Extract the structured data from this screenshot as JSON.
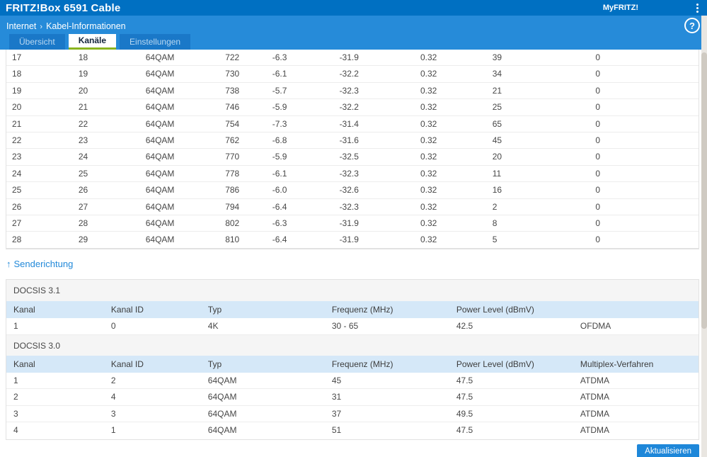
{
  "header": {
    "title": "FRITZ!Box 6591 Cable",
    "myfritz": "MyFRITZ!"
  },
  "breadcrumb": {
    "section": "Internet",
    "separator": "›",
    "page": "Kabel-Informationen",
    "help_glyph": "?"
  },
  "tabs": [
    {
      "label": "Übersicht",
      "active": false
    },
    {
      "label": "Kanäle",
      "active": true
    },
    {
      "label": "Einstellungen",
      "active": false
    }
  ],
  "receive_table": {
    "rows": [
      [
        "17",
        "18",
        "64QAM",
        "722",
        "-6.3",
        "-31.9",
        "0.32",
        "39",
        "0"
      ],
      [
        "18",
        "19",
        "64QAM",
        "730",
        "-6.1",
        "-32.2",
        "0.32",
        "34",
        "0"
      ],
      [
        "19",
        "20",
        "64QAM",
        "738",
        "-5.7",
        "-32.3",
        "0.32",
        "21",
        "0"
      ],
      [
        "20",
        "21",
        "64QAM",
        "746",
        "-5.9",
        "-32.2",
        "0.32",
        "25",
        "0"
      ],
      [
        "21",
        "22",
        "64QAM",
        "754",
        "-7.3",
        "-31.4",
        "0.32",
        "65",
        "0"
      ],
      [
        "22",
        "23",
        "64QAM",
        "762",
        "-6.8",
        "-31.6",
        "0.32",
        "45",
        "0"
      ],
      [
        "23",
        "24",
        "64QAM",
        "770",
        "-5.9",
        "-32.5",
        "0.32",
        "20",
        "0"
      ],
      [
        "24",
        "25",
        "64QAM",
        "778",
        "-6.1",
        "-32.3",
        "0.32",
        "11",
        "0"
      ],
      [
        "25",
        "26",
        "64QAM",
        "786",
        "-6.0",
        "-32.6",
        "0.32",
        "16",
        "0"
      ],
      [
        "26",
        "27",
        "64QAM",
        "794",
        "-6.4",
        "-32.3",
        "0.32",
        "2",
        "0"
      ],
      [
        "27",
        "28",
        "64QAM",
        "802",
        "-6.3",
        "-31.9",
        "0.32",
        "8",
        "0"
      ],
      [
        "28",
        "29",
        "64QAM",
        "810",
        "-6.4",
        "-31.9",
        "0.32",
        "5",
        "0"
      ]
    ]
  },
  "send_section": {
    "arrow": "↑",
    "title": "Senderichtung"
  },
  "docsis31": {
    "label": "DOCSIS 3.1",
    "headers": [
      "Kanal",
      "Kanal ID",
      "Typ",
      "Frequenz (MHz)",
      "Power Level (dBmV)",
      ""
    ],
    "rows": [
      [
        "1",
        "0",
        "4K",
        "30 - 65",
        "42.5",
        "OFDMA"
      ]
    ]
  },
  "docsis30": {
    "label": "DOCSIS 3.0",
    "headers": [
      "Kanal",
      "Kanal ID",
      "Typ",
      "Frequenz (MHz)",
      "Power Level (dBmV)",
      "Multiplex-Verfahren"
    ],
    "rows": [
      [
        "1",
        "2",
        "64QAM",
        "45",
        "47.5",
        "ATDMA"
      ],
      [
        "2",
        "4",
        "64QAM",
        "31",
        "47.5",
        "ATDMA"
      ],
      [
        "3",
        "3",
        "64QAM",
        "37",
        "49.5",
        "ATDMA"
      ],
      [
        "4",
        "1",
        "64QAM",
        "51",
        "47.5",
        "ATDMA"
      ]
    ]
  },
  "footer": {
    "refresh_label": "Aktualisieren"
  },
  "colors": {
    "header_blue": "#0070c2",
    "bar_blue": "#268bd9",
    "tab_active_underline": "#8ab41f",
    "table_header_blue": "#d5e8f8",
    "link_blue": "#2289d9",
    "button_blue": "#1e87d9"
  }
}
